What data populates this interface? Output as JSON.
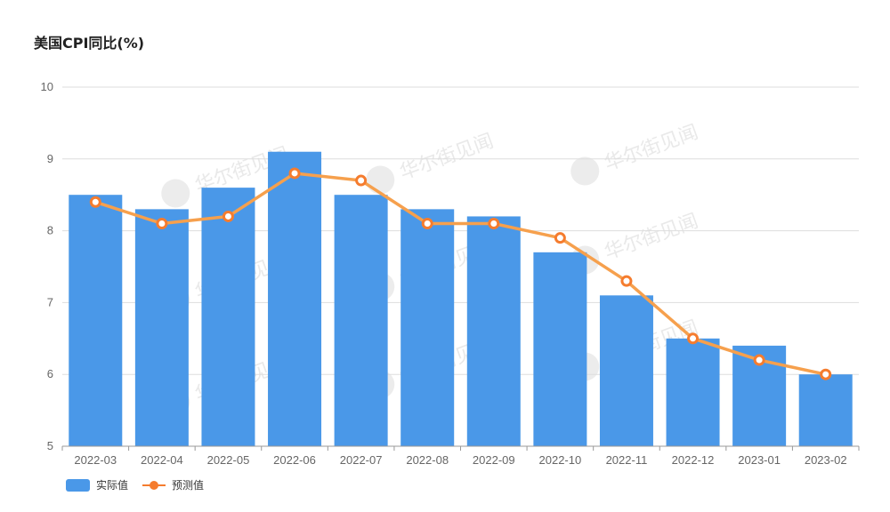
{
  "title": "美国CPI同比(%)",
  "watermark": "华尔街见闻",
  "chart_data": {
    "type": "bar",
    "categories": [
      "2022-03",
      "2022-04",
      "2022-05",
      "2022-06",
      "2022-07",
      "2022-08",
      "2022-09",
      "2022-10",
      "2022-11",
      "2022-12",
      "2023-01",
      "2023-02"
    ],
    "series": [
      {
        "name": "实际值",
        "type": "bar",
        "color": "#4a98e8",
        "values": [
          8.5,
          8.3,
          8.6,
          9.1,
          8.5,
          8.3,
          8.2,
          7.7,
          7.1,
          6.5,
          6.4,
          6.0
        ]
      },
      {
        "name": "预测值",
        "type": "line",
        "color": "#f6a04d",
        "marker_color": "#f57c2e",
        "values": [
          8.4,
          8.1,
          8.2,
          8.8,
          8.7,
          8.1,
          8.1,
          7.9,
          7.3,
          6.5,
          6.2,
          6.0
        ]
      }
    ],
    "ylim": [
      5,
      10
    ],
    "yticks": [
      5,
      6,
      7,
      8,
      9,
      10
    ],
    "grid": true,
    "legend": "bottom-left"
  }
}
